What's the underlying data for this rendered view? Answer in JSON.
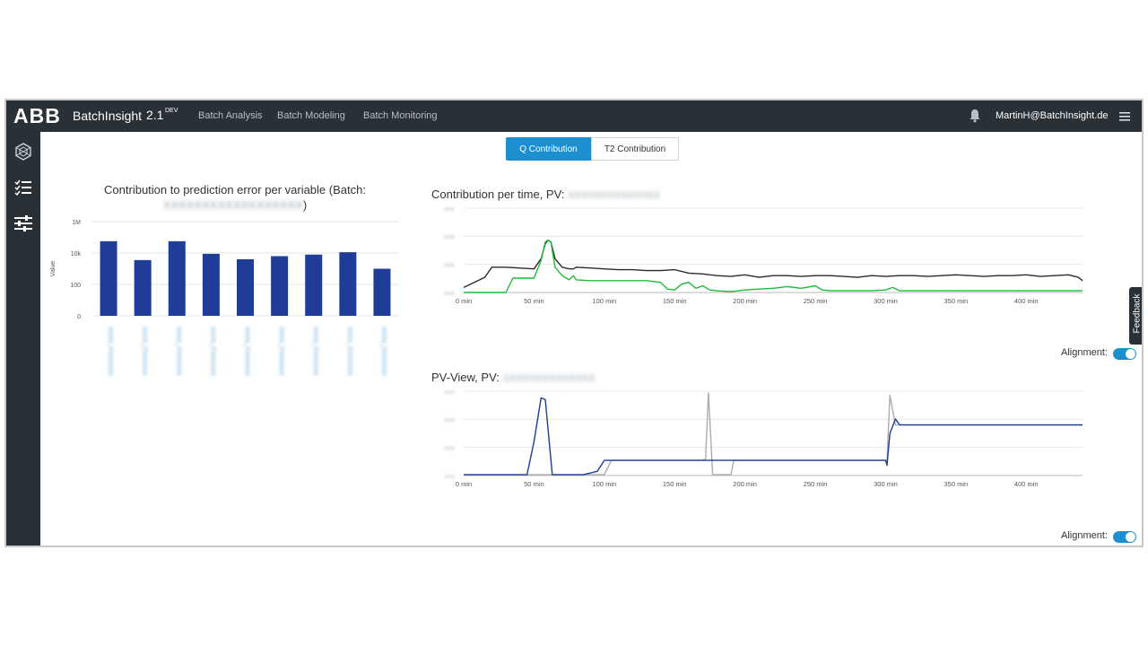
{
  "header": {
    "logo": "ABB",
    "app_name": "BatchInsight",
    "version": "2.1",
    "env_tag": "DEV",
    "nav": [
      "Batch Analysis",
      "Batch Modeling",
      "Batch Monitoring"
    ],
    "user": "MartinH@BatchInsight.de",
    "icons": {
      "bell": "bell-icon",
      "menu": "hamburger-menu-icon"
    }
  },
  "sidebar": {
    "items": [
      {
        "icon": "hexagon-network-icon"
      },
      {
        "icon": "checklist-icon"
      },
      {
        "icon": "sliders-icon"
      }
    ]
  },
  "tabs": {
    "active": "Q Contribution",
    "inactive": "T2 Contribution"
  },
  "colors": {
    "topbar": "#2a3136",
    "accent": "#1c8fd1",
    "bar": "#1f3c96",
    "dark_line": "#2b2b2b",
    "green_line": "#1ebc3c",
    "gray_line": "#a9adb1"
  },
  "feedback_label": "Feedback",
  "chart_data": [
    {
      "type": "bar",
      "title": "Contribution to prediction error per variable (Batch:",
      "title_suffix": ")",
      "ylabel": "Value",
      "y_ticks": [
        "1M",
        "10k",
        "100",
        "0"
      ],
      "categories_visible": false,
      "values_log10": [
        4.75,
        3.55,
        4.75,
        3.95,
        3.6,
        3.8,
        3.9,
        4.05,
        3.0
      ]
    },
    {
      "type": "line",
      "title": "Contribution per time, PV:",
      "xlabel": "",
      "x_ticks": [
        "0 min",
        "50 min",
        "100 min",
        "150 min",
        "200 min",
        "250 min",
        "300 min",
        "350 min",
        "400 min"
      ],
      "x_range": [
        0,
        440
      ],
      "series": [
        {
          "x": [
            0,
            15,
            20,
            30,
            50,
            55,
            58,
            60,
            62,
            65,
            70,
            75,
            78,
            80,
            90,
            100,
            110,
            120,
            130,
            140,
            150,
            160,
            170,
            180,
            190,
            200,
            210,
            220,
            230,
            240,
            250,
            260,
            270,
            280,
            290,
            300,
            310,
            320,
            330,
            340,
            350,
            360,
            370,
            380,
            390,
            400,
            410,
            420,
            430,
            437,
            440
          ],
          "y": [
            0.06,
            0.18,
            0.3,
            0.3,
            0.28,
            0.4,
            0.58,
            0.62,
            0.6,
            0.4,
            0.3,
            0.28,
            0.28,
            0.3,
            0.29,
            0.28,
            0.27,
            0.27,
            0.26,
            0.26,
            0.27,
            0.23,
            0.22,
            0.2,
            0.19,
            0.21,
            0.18,
            0.2,
            0.2,
            0.19,
            0.2,
            0.2,
            0.19,
            0.18,
            0.2,
            0.19,
            0.2,
            0.2,
            0.19,
            0.2,
            0.21,
            0.2,
            0.19,
            0.2,
            0.2,
            0.21,
            0.19,
            0.2,
            0.21,
            0.18,
            0.14
          ]
        },
        {
          "x": [
            0,
            30,
            35,
            50,
            55,
            58,
            60,
            62,
            65,
            70,
            75,
            78,
            80,
            90,
            100,
            110,
            120,
            130,
            140,
            145,
            150,
            155,
            160,
            165,
            170,
            175,
            180,
            190,
            200,
            210,
            220,
            230,
            240,
            250,
            255,
            260,
            270,
            280,
            290,
            300,
            305,
            310,
            320,
            330,
            340,
            350,
            360,
            370,
            380,
            390,
            400,
            410,
            420,
            430,
            440
          ],
          "y": [
            0.0,
            0.0,
            0.17,
            0.17,
            0.38,
            0.6,
            0.62,
            0.6,
            0.3,
            0.2,
            0.15,
            0.2,
            0.15,
            0.14,
            0.14,
            0.14,
            0.14,
            0.14,
            0.12,
            0.04,
            0.03,
            0.1,
            0.12,
            0.05,
            0.08,
            0.03,
            0.02,
            0.01,
            0.03,
            0.04,
            0.05,
            0.07,
            0.05,
            0.08,
            0.03,
            0.02,
            0.02,
            0.02,
            0.02,
            0.03,
            0.06,
            0.02,
            0.02,
            0.02,
            0.02,
            0.02,
            0.02,
            0.02,
            0.02,
            0.02,
            0.02,
            0.02,
            0.02,
            0.02,
            0.02
          ]
        }
      ]
    },
    {
      "type": "line",
      "title": "PV-View, PV:",
      "xlabel": "",
      "x_ticks": [
        "0 min",
        "50 min",
        "100 min",
        "150 min",
        "200 min",
        "250 min",
        "300 min",
        "350 min",
        "400 min"
      ],
      "x_range": [
        0,
        440
      ],
      "series": [
        {
          "x": [
            0,
            45,
            55,
            58,
            63,
            85,
            100,
            105,
            120,
            150,
            170,
            172,
            174,
            177,
            190,
            192,
            200,
            250,
            290,
            301,
            303,
            307,
            310,
            320,
            350,
            400,
            440
          ],
          "y": [
            0.01,
            0.01,
            0.01,
            0.01,
            0.01,
            0.01,
            0.01,
            0.18,
            0.18,
            0.18,
            0.18,
            0.2,
            0.98,
            0.01,
            0.01,
            0.18,
            0.18,
            0.18,
            0.18,
            0.18,
            0.95,
            0.6,
            0.6,
            0.6,
            0.6,
            0.6,
            0.6
          ]
        },
        {
          "x": [
            0,
            45,
            50,
            55,
            58,
            63,
            85,
            95,
            100,
            110,
            150,
            200,
            250,
            300,
            301,
            303,
            307,
            310,
            350,
            400,
            440
          ],
          "y": [
            0.01,
            0.01,
            0.4,
            0.92,
            0.9,
            0.01,
            0.01,
            0.05,
            0.18,
            0.18,
            0.18,
            0.18,
            0.18,
            0.18,
            0.12,
            0.5,
            0.67,
            0.6,
            0.6,
            0.6,
            0.6
          ]
        }
      ]
    }
  ],
  "alignment_label": "Alignment:"
}
